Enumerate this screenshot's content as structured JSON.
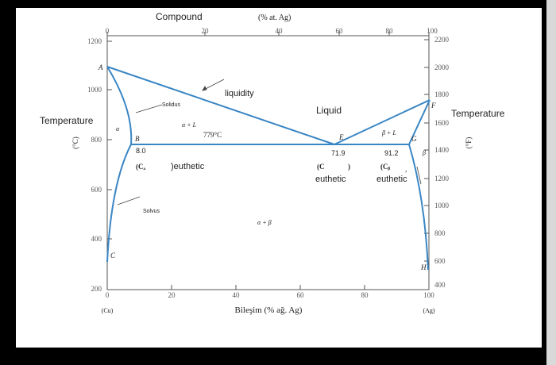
{
  "diagram": {
    "top_axis": {
      "title_compound": "Compound",
      "title_rest": "(% at. Ag)",
      "ticks": [
        "0",
        "20",
        "40",
        "60",
        "80",
        "100"
      ]
    },
    "bottom_axis": {
      "title": "Bileşim (% ağ. Ag)",
      "ticks": [
        "0",
        "20",
        "40",
        "60",
        "80",
        "100"
      ],
      "left_end": "(Cu)",
      "right_end": "(Ag)"
    },
    "left_axis": {
      "title": "Temperature",
      "unit": "(°C)",
      "ticks": [
        "1200",
        "1000",
        "800",
        "600",
        "400",
        "200"
      ]
    },
    "right_axis": {
      "title": "Temperature",
      "unit": "(°F)",
      "ticks": [
        "2200",
        "2000",
        "1800",
        "1600",
        "1400",
        "1200",
        "1000",
        "800",
        "600",
        "400"
      ]
    },
    "points": {
      "A": "A",
      "B": "B",
      "C": "C",
      "E": "E",
      "F": "F",
      "G": "G",
      "H": "H"
    },
    "regions": {
      "liquid": "Liquid",
      "alpha": "α",
      "beta": "β",
      "alpha_liquid": "α + L",
      "beta_liquid": "β + L",
      "alpha_beta": "α + β"
    },
    "curves": {
      "liquidity": "liquidity",
      "solidus": "Solidus",
      "solvus": "Solvus"
    },
    "annotations": {
      "eutectic_temp": "779°C",
      "b_comp": "8.0",
      "e_comp": "71.9",
      "g_comp": "91.2",
      "c_alpha": "(Cₐ",
      "eutheticA": "eutheticA",
      "c_e": "(C",
      "c_e_close": ")",
      "eutheticE": "euthetic",
      "c_beta": "(Cᵦ",
      "comma": ",",
      "eutheticB": "euthetic"
    },
    "line_color": "#3a86c4"
  }
}
